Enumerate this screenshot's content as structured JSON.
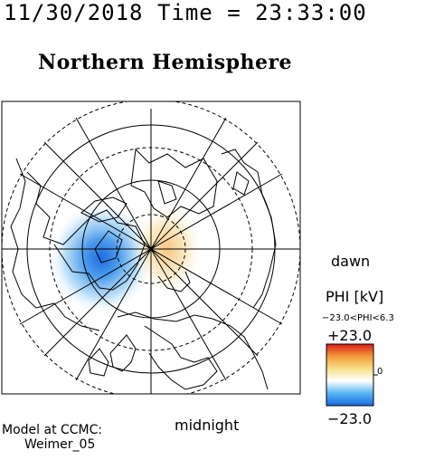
{
  "header": {
    "datetime": "11/30/2018 Time = 23:33:00",
    "hemisphere": "Northern Hemisphere"
  },
  "labels": {
    "dawn": "dawn",
    "midnight": "midnight"
  },
  "colorbar": {
    "title": "PHI [kV]",
    "range_text": "−23.0<PHI<6.3",
    "max_label": "+23.0",
    "min_label": "−23.0",
    "zero_label": "0",
    "colors": [
      "#1a6be0",
      "#55b4f2",
      "#ffffff",
      "#f7e08a",
      "#f59a3a",
      "#d81e1e"
    ]
  },
  "credit": {
    "line1": "Model at CCMC:",
    "line2": "Weimer_05"
  },
  "chart_data": {
    "type": "heatmap",
    "title": "Northern Hemisphere",
    "quantity": "PHI",
    "units": "kV",
    "data_min": -23.0,
    "data_max": 6.3,
    "colorbar_min": -23.0,
    "colorbar_max": 23.0,
    "projection": "polar, north pole at center",
    "features": [
      {
        "name": "negative cell",
        "sector": "pre-midnight / dusk",
        "extreme": -23.0
      },
      {
        "name": "positive cell",
        "sector": "post-midnight / dawn",
        "extreme": 6.3
      }
    ]
  }
}
